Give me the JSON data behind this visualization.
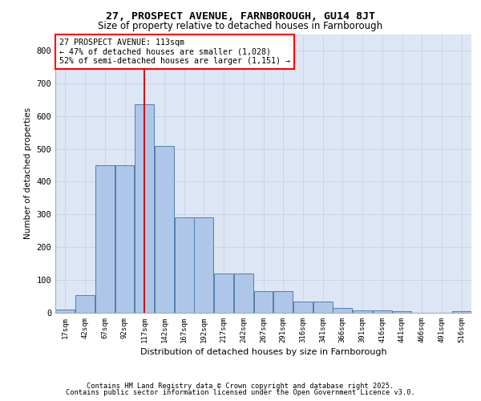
{
  "title1": "27, PROSPECT AVENUE, FARNBOROUGH, GU14 8JT",
  "title2": "Size of property relative to detached houses in Farnborough",
  "xlabel": "Distribution of detached houses by size in Farnborough",
  "ylabel": "Number of detached properties",
  "bar_labels": [
    "17sqm",
    "42sqm",
    "67sqm",
    "92sqm",
    "117sqm",
    "142sqm",
    "167sqm",
    "192sqm",
    "217sqm",
    "242sqm",
    "267sqm",
    "291sqm",
    "316sqm",
    "341sqm",
    "366sqm",
    "391sqm",
    "416sqm",
    "441sqm",
    "466sqm",
    "491sqm",
    "516sqm"
  ],
  "bar_heights": [
    10,
    55,
    450,
    450,
    635,
    510,
    290,
    290,
    120,
    120,
    65,
    65,
    35,
    35,
    15,
    8,
    8,
    5,
    0,
    0,
    5
  ],
  "bar_color": "#aec6e8",
  "bar_edge_color": "#5080b0",
  "vline_x_index": 4,
  "vline_color": "#cc0000",
  "annotation_text": "27 PROSPECT AVENUE: 113sqm\n← 47% of detached houses are smaller (1,028)\n52% of semi-detached houses are larger (1,151) →",
  "grid_color": "#c8d4e8",
  "bg_color": "#dce6f5",
  "ylim": [
    0,
    850
  ],
  "yticks": [
    0,
    100,
    200,
    300,
    400,
    500,
    600,
    700,
    800
  ],
  "footer1": "Contains HM Land Registry data © Crown copyright and database right 2025.",
  "footer2": "Contains public sector information licensed under the Open Government Licence v3.0."
}
